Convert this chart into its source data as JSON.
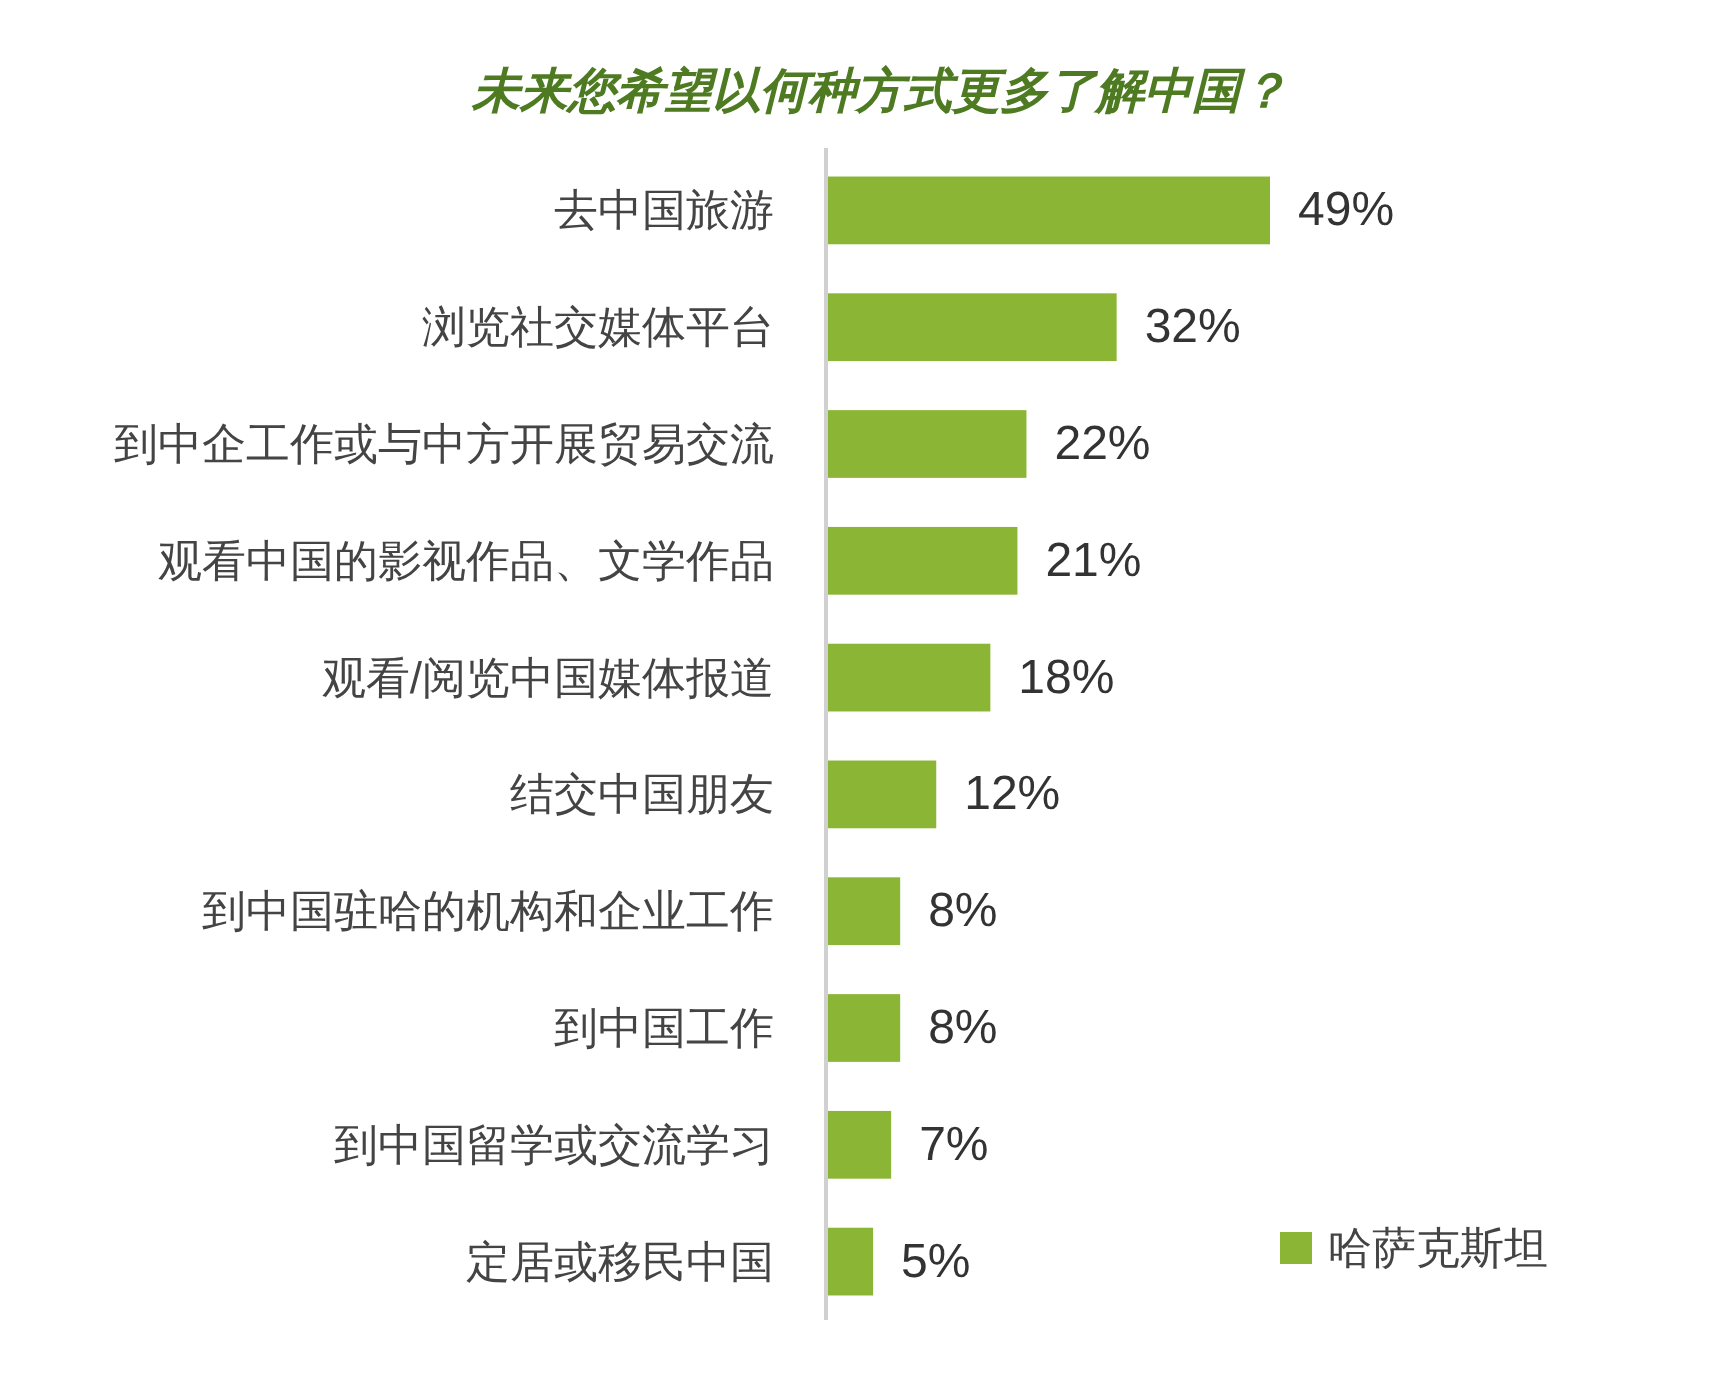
{
  "chart_data": {
    "type": "bar",
    "orientation": "horizontal",
    "title": "未来您希望以何种方式更多了解中国？",
    "categories": [
      "去中国旅游",
      "浏览社交媒体平台",
      "到中企工作或与中方开展贸易交流",
      "观看中国的影视作品、文学作品",
      "观看/阅览中国媒体报道",
      "结交中国朋友",
      "到中国驻哈的机构和企业工作",
      "到中国工作",
      "到中国留学或交流学习",
      "定居或移民中国"
    ],
    "series": [
      {
        "name": "哈萨克斯坦",
        "color": "#8bb635",
        "values": [
          49,
          32,
          22,
          21,
          18,
          12,
          8,
          8,
          7,
          5
        ],
        "value_labels": [
          "49%",
          "32%",
          "22%",
          "21%",
          "18%",
          "12%",
          "8%",
          "8%",
          "7%",
          "5%"
        ]
      }
    ],
    "legend": "bottom right"
  }
}
